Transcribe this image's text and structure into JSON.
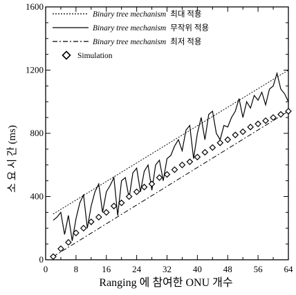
{
  "chart_data": {
    "type": "line",
    "title": "",
    "xlabel": "Ranging 에 참여한 ONU 개수",
    "ylabel": "소 요 시 간 (ms)",
    "xlim": [
      0,
      64
    ],
    "ylim": [
      0,
      1600
    ],
    "x_ticks": [
      "0",
      "8",
      "16",
      "24",
      "32",
      "40",
      "48",
      "56",
      "64"
    ],
    "y_ticks": [
      "0",
      "400",
      "800",
      "1200",
      "1600"
    ],
    "grid": false,
    "legend_position": "top-left",
    "series": [
      {
        "name": "Binary tree mechanism 최대 적용",
        "style": "dotted",
        "x": [
          2,
          64
        ],
        "y": [
          290,
          1200
        ]
      },
      {
        "name": "Binary tree mechanism 무작위 적용",
        "style": "solid",
        "x": [
          2,
          3,
          4,
          5,
          6,
          7,
          8,
          9,
          10,
          11,
          12,
          13,
          14,
          15,
          16,
          17,
          18,
          19,
          20,
          21,
          22,
          23,
          24,
          25,
          26,
          27,
          28,
          29,
          30,
          31,
          32,
          33,
          34,
          35,
          36,
          37,
          38,
          39,
          40,
          41,
          42,
          43,
          44,
          45,
          46,
          47,
          48,
          49,
          50,
          51,
          52,
          53,
          54,
          55,
          56,
          57,
          58,
          59,
          60,
          61,
          62,
          63,
          64
        ],
        "y": [
          250,
          270,
          300,
          160,
          280,
          120,
          260,
          360,
          410,
          200,
          340,
          430,
          480,
          300,
          430,
          470,
          520,
          280,
          500,
          520,
          390,
          550,
          580,
          430,
          560,
          600,
          440,
          600,
          630,
          500,
          640,
          660,
          720,
          760,
          690,
          820,
          850,
          640,
          800,
          900,
          760,
          920,
          940,
          800,
          760,
          850,
          840,
          900,
          940,
          1020,
          900,
          1000,
          960,
          1040,
          1010,
          1060,
          980,
          1080,
          1100,
          1180,
          1080,
          1050,
          1000
        ]
      },
      {
        "name": "Binary tree mechanism 최저 적용",
        "style": "dash-dot",
        "x": [
          2,
          64
        ],
        "y": [
          20,
          940
        ]
      },
      {
        "name": "Simulation",
        "style": "diamond-markers",
        "x": [
          2,
          4,
          6,
          8,
          10,
          12,
          14,
          16,
          18,
          20,
          22,
          24,
          26,
          28,
          30,
          32,
          34,
          36,
          38,
          40,
          42,
          44,
          46,
          48,
          50,
          52,
          54,
          56,
          58,
          60,
          62,
          64
        ],
        "y": [
          20,
          70,
          110,
          170,
          200,
          240,
          270,
          300,
          340,
          360,
          400,
          430,
          460,
          480,
          520,
          540,
          570,
          600,
          620,
          650,
          680,
          710,
          740,
          760,
          790,
          810,
          840,
          860,
          880,
          900,
          920,
          940
        ]
      }
    ]
  }
}
